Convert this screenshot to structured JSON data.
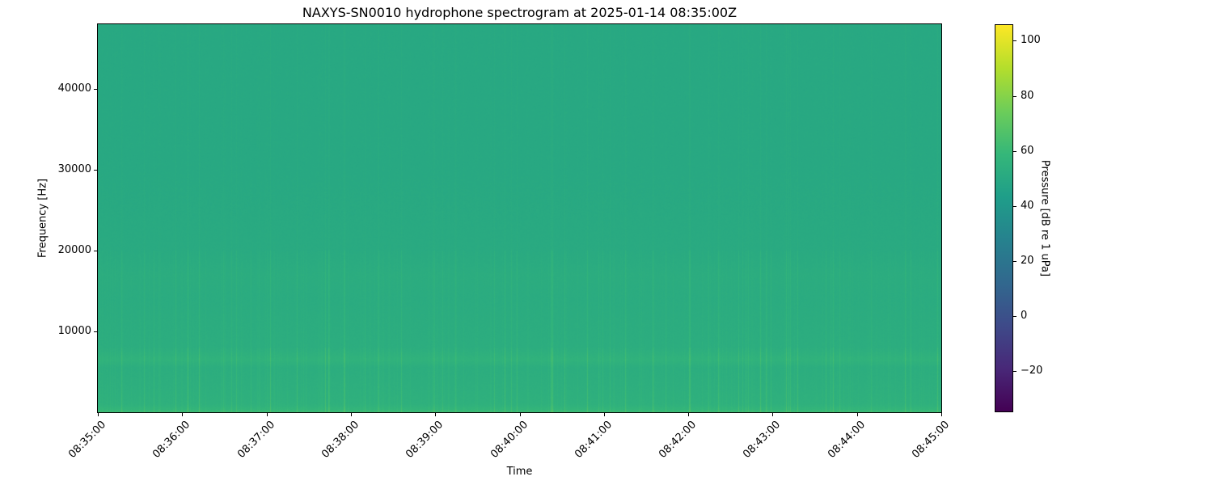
{
  "chart_data": {
    "type": "heatmap",
    "title": "NAXYS-SN0010 hydrophone spectrogram at 2025-01-14 08:35:00Z",
    "xlabel": "Time",
    "ylabel": "Frequency [Hz]",
    "x_ticks": [
      "08:35:00",
      "08:36:00",
      "08:37:00",
      "08:38:00",
      "08:39:00",
      "08:40:00",
      "08:41:00",
      "08:42:00",
      "08:43:00",
      "08:44:00",
      "08:45:00"
    ],
    "y_ticks": [
      10000,
      20000,
      30000,
      40000
    ],
    "ylim": [
      0,
      48000
    ],
    "colormap": "viridis",
    "colorbar": {
      "label": "Pressure [dB re 1 uPa]",
      "ticks": [
        -20,
        0,
        20,
        40,
        60,
        80,
        100
      ],
      "range": [
        -35,
        106
      ]
    },
    "band_profile": {
      "frequency_hz": [
        0,
        300,
        1000,
        3000,
        5500,
        6500,
        8000,
        14000,
        17000,
        20000,
        30000,
        40000,
        48000
      ],
      "level_db": [
        62,
        58,
        55,
        54,
        53,
        56,
        53,
        52,
        52.5,
        51,
        50,
        50,
        50
      ]
    }
  }
}
